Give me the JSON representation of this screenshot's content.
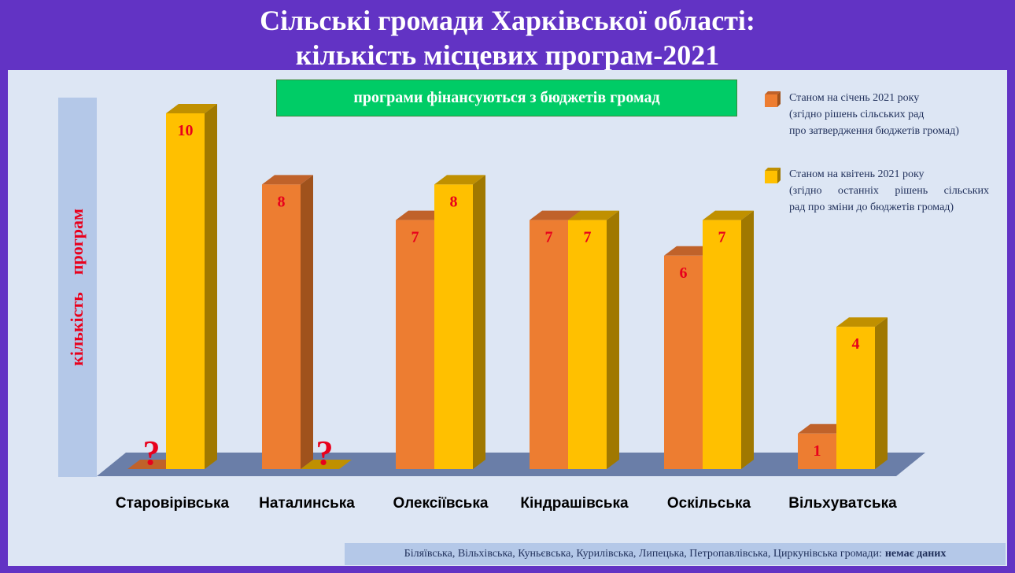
{
  "header": {
    "title_line1": "Сільські громади Харківської області:",
    "title_line2": "кількість місцевих програм-2021"
  },
  "banner": {
    "text": "програми фінансуються з бюджетів громад"
  },
  "legend": {
    "items": [
      {
        "series": "jan",
        "line1": "Станом на січень 2021 року",
        "line2": "(згідно рішень сільських рад",
        "line3": "про затвердження бюджетів громад)"
      },
      {
        "series": "apr",
        "line1": "Станом на квітень 2021 року",
        "line2": "(згідно останніх рішень сільських",
        "line3": "рад про зміни до бюджетів громад)"
      }
    ]
  },
  "footer": {
    "text": "Біляївська, Вільхівська, Куньєвська, Курилівська, Липецька,  Петропавлівська, Циркунівська громади:",
    "bold": "немає даних"
  },
  "colors": {
    "jan": "#ed7d31",
    "jan_side": "#a0521c",
    "jan_top": "#c0622a",
    "apr": "#ffc000",
    "apr_side": "#a07800",
    "apr_top": "#c09000",
    "floor": "#6a7ea8",
    "value_label": "#e8001c"
  },
  "chart_data": {
    "type": "bar",
    "title": "Сільські громади Харківської області: кількість місцевих програм-2021",
    "ylabel": "кількість    програм",
    "categories": [
      "Старовірівська",
      "Наталинська",
      "Олексіївська",
      "Кіндрашівська",
      "Оскільська",
      "Вільхуватська"
    ],
    "series": [
      {
        "name": "Станом на січень 2021 року",
        "values": [
          null,
          8,
          7,
          7,
          6,
          1
        ],
        "value_labels": [
          "?",
          "8",
          "7",
          "7",
          "6",
          "1"
        ]
      },
      {
        "name": "Станом на квітень 2021 року",
        "values": [
          10,
          null,
          8,
          7,
          7,
          4
        ],
        "value_labels": [
          "10",
          "?",
          "8",
          "7",
          "7",
          "4"
        ]
      }
    ],
    "ylim": [
      0,
      10
    ],
    "grid": false,
    "legend_position": "top-right"
  }
}
